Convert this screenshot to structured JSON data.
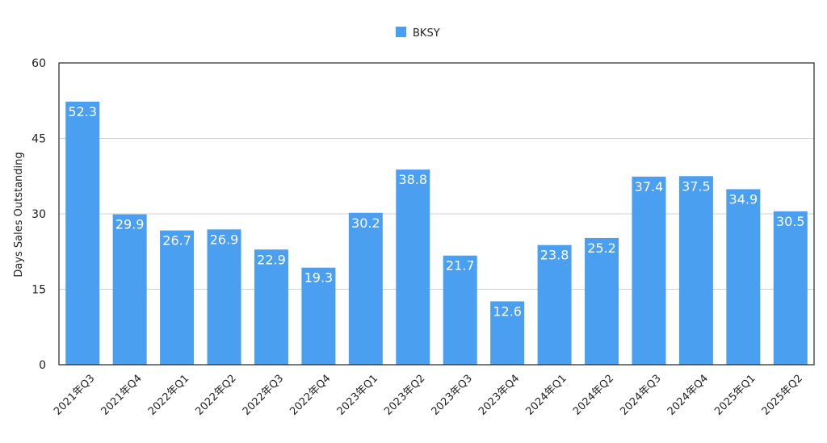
{
  "chart_data": {
    "type": "bar",
    "title": "",
    "xlabel": "",
    "ylabel": "Days Sales Outstanding",
    "ylim": [
      0,
      60
    ],
    "yticks": [
      0,
      15,
      30,
      45,
      60
    ],
    "grid": true,
    "legend_position": "top-center",
    "categories": [
      "2021年Q3",
      "2021年Q4",
      "2022年Q1",
      "2022年Q2",
      "2022年Q3",
      "2022年Q4",
      "2023年Q1",
      "2023年Q2",
      "2023年Q3",
      "2023年Q4",
      "2024年Q1",
      "2024年Q2",
      "2024年Q3",
      "2024年Q4",
      "2025年Q1",
      "2025年Q2"
    ],
    "series": [
      {
        "name": "BKSY",
        "color": "#4a9ff0",
        "values": [
          52.3,
          29.9,
          26.7,
          26.9,
          22.9,
          19.3,
          30.2,
          38.8,
          21.7,
          12.6,
          23.8,
          25.2,
          37.4,
          37.5,
          34.9,
          30.5
        ]
      }
    ]
  }
}
